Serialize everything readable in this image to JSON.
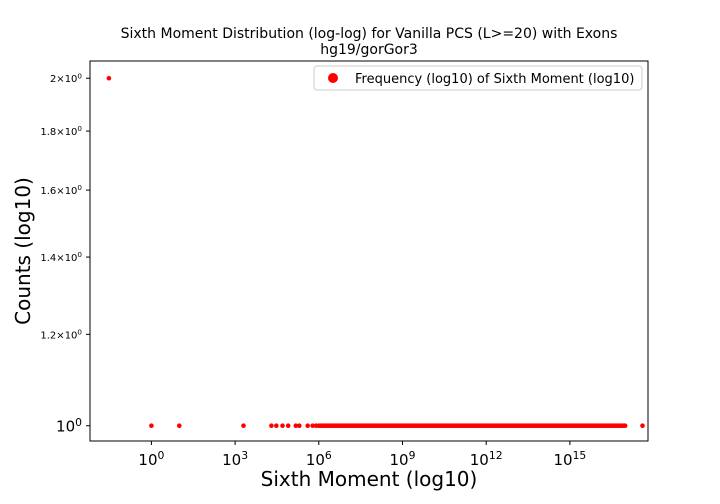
{
  "chart_data": {
    "type": "scatter",
    "title": "Sixth Moment Distribution (log-log) for Vanilla PCS (L>=20) with Exons",
    "subtitle": "hg19/gorGor3",
    "xlabel": "Sixth Moment (log10)",
    "ylabel": "Counts (log10)",
    "x_scale": "log",
    "y_scale": "log",
    "xlim": [
      0.0063,
      6.3e+17
    ],
    "ylim": [
      0.97,
      2.07
    ],
    "x_ticks": [
      {
        "value": 1,
        "label": "10^0"
      },
      {
        "value": 1000,
        "label": "10^3"
      },
      {
        "value": 1000000,
        "label": "10^6"
      },
      {
        "value": 1000000000,
        "label": "10^9"
      },
      {
        "value": 1000000000000,
        "label": "10^12"
      },
      {
        "value": 1000000000000000,
        "label": "10^15"
      }
    ],
    "y_ticks": [
      {
        "value": 1.0,
        "label": "10^0"
      },
      {
        "value": 1.2,
        "label": "1.2×10^0"
      },
      {
        "value": 1.4,
        "label": "1.4×10^0"
      },
      {
        "value": 1.6,
        "label": "1.6×10^0"
      },
      {
        "value": 1.8,
        "label": "1.8×10^0"
      },
      {
        "value": 2.0,
        "label": "2×10^0"
      }
    ],
    "legend": {
      "position": "top-right",
      "entries": [
        "Frequency (log10) of Sixth Moment (log10)"
      ]
    },
    "grid": false,
    "series": [
      {
        "name": "Frequency (log10) of Sixth Moment (log10)",
        "color": "#ff0000",
        "points": [
          {
            "x": 0.03,
            "y": 2
          },
          {
            "x": 1,
            "y": 1
          },
          {
            "x": 10,
            "y": 1
          },
          {
            "x": 2000,
            "y": 1
          },
          {
            "x": 20000,
            "y": 1
          },
          {
            "x": 30000,
            "y": 1
          },
          {
            "x": 50000,
            "y": 1
          },
          {
            "x": 80000,
            "y": 1
          },
          {
            "x": 150000,
            "y": 1
          },
          {
            "x": 200000,
            "y": 1
          },
          {
            "x": 400000,
            "y": 1
          },
          {
            "x": 600000,
            "y": 1
          },
          {
            "x": 800000,
            "y": 1
          }
        ],
        "dense_ranges": [
          {
            "x_from": 1000000,
            "x_to": 1e+17,
            "y": 1
          }
        ],
        "outlier_points": [
          {
            "x": 4e+17,
            "y": 1
          }
        ]
      }
    ]
  }
}
